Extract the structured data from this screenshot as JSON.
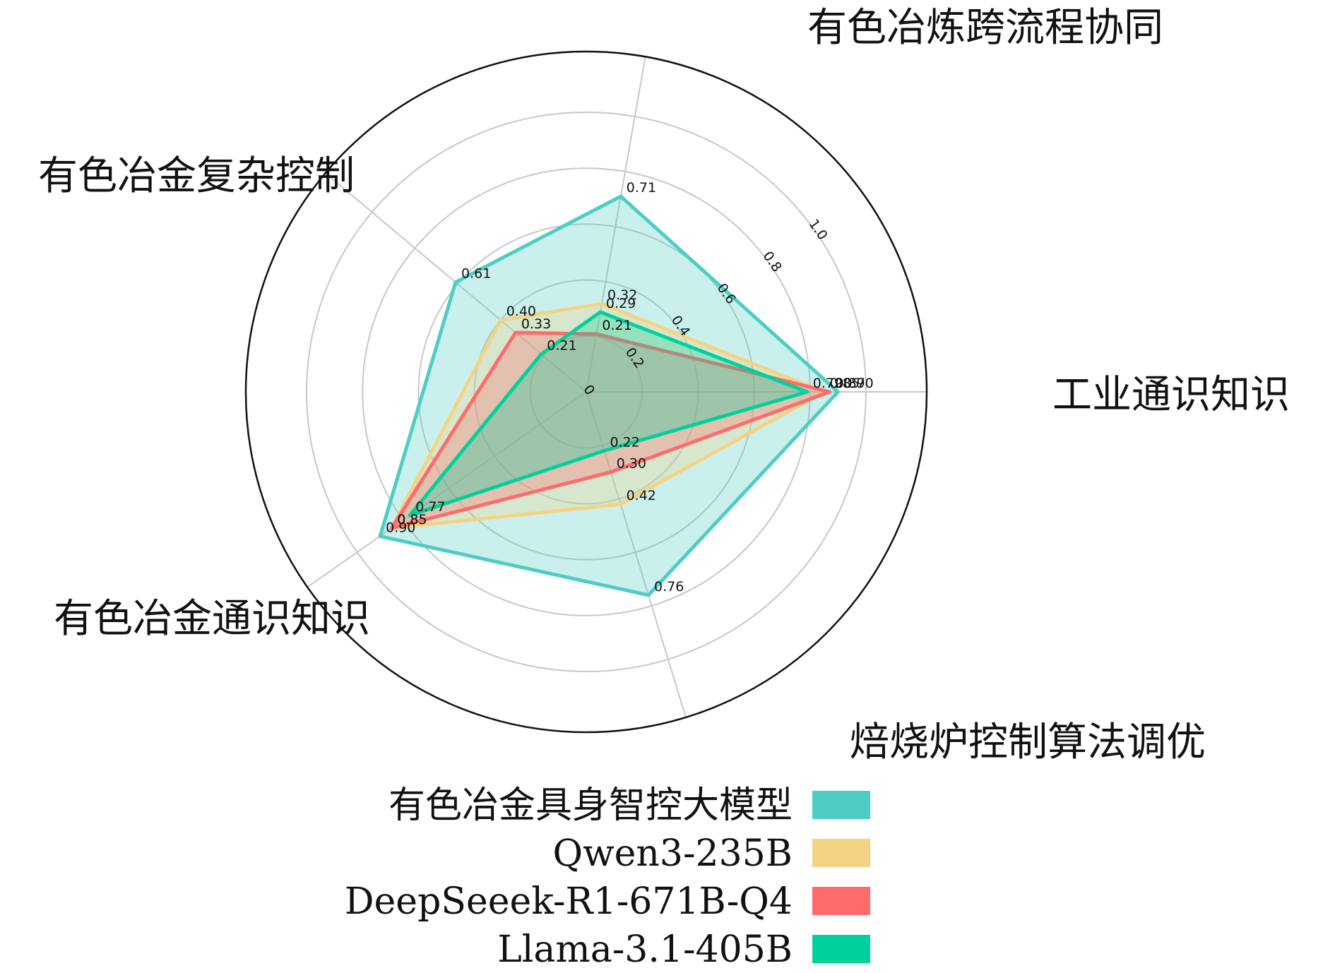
{
  "chart_data": {
    "type": "radar",
    "axes": [
      "工业通识知识",
      "有色冶炼跨流程协同",
      "有色冶金复杂控制",
      "有色冶金通识知识",
      "焙烧炉控制算法调优"
    ],
    "rlim": [
      0,
      1.0
    ],
    "radial_ticks": [
      "0",
      "0.2",
      "0.4",
      "0.6",
      "0.8",
      "1.0"
    ],
    "radial_tick_values": [
      0,
      0.2,
      0.4,
      0.6,
      0.8,
      1.0
    ],
    "grid": true,
    "legend_position": "bottom",
    "series": [
      {
        "name": "有色冶金具身智控大模型",
        "color": "#4ECDC4",
        "values": [
          0.9,
          0.71,
          0.61,
          0.9,
          0.76
        ],
        "labels": [
          "0.90",
          "0.71",
          "0.61",
          "0.90",
          "0.76"
        ]
      },
      {
        "name": "Qwen3-235B",
        "color": "#F4D384",
        "values": [
          0.85,
          0.32,
          0.4,
          0.85,
          0.42
        ],
        "labels": [
          "0.85",
          "0.32",
          "0.40",
          "0.85",
          "0.42"
        ]
      },
      {
        "name": "DeepSeeek-R1-671B-Q4",
        "color": "#FF6B6B",
        "values": [
          0.87,
          0.21,
          0.33,
          0.85,
          0.3
        ],
        "labels": [
          "0.87",
          "0.21",
          "0.33",
          "0.85",
          "0.30"
        ]
      },
      {
        "name": "Llama-3.1-405B",
        "color": "#00D09C",
        "values": [
          0.79,
          0.29,
          0.21,
          0.77,
          0.22
        ],
        "labels": [
          "0.79",
          "0.29",
          "0.21",
          "0.77",
          "0.22"
        ]
      }
    ]
  }
}
